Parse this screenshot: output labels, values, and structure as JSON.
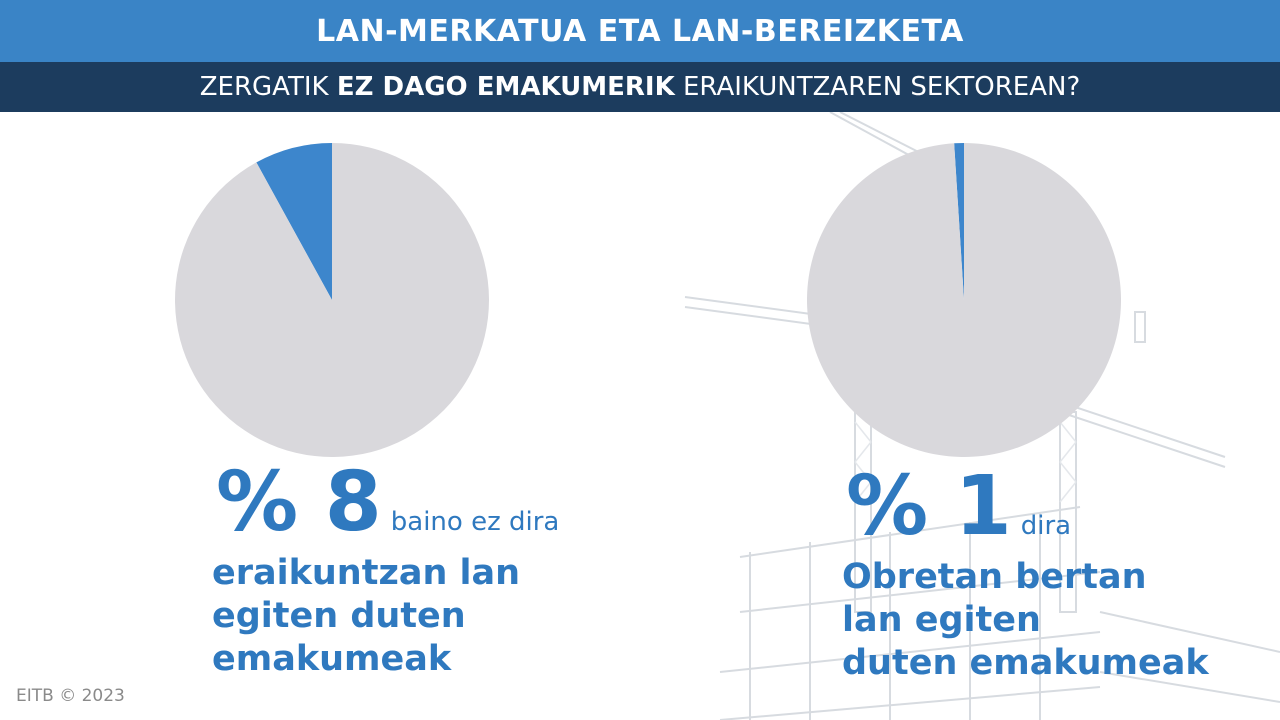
{
  "header": {
    "title": "LAN-MERKATUA ETA LAN-BEREIZKETA",
    "subtitle_pre": "ZERGATIK ",
    "subtitle_bold": "EZ DAGO EMAKUMERIK",
    "subtitle_post": " ERAIKUNTZAREN SEKTOREAN?"
  },
  "chart_data": [
    {
      "type": "pie",
      "slices": [
        {
          "value": 8,
          "color": "#3d86cc"
        },
        {
          "value": 92,
          "color": "#d9d8dc"
        }
      ]
    },
    {
      "type": "pie",
      "slices": [
        {
          "value": 1,
          "color": "#3d86cc"
        },
        {
          "value": 99,
          "color": "#d9d8dc"
        }
      ]
    }
  ],
  "stats": [
    {
      "big": "% 8",
      "small": "baino ez dira",
      "desc": [
        "eraikuntzan lan",
        "egiten duten",
        "emakumeak"
      ]
    },
    {
      "big": "% 1",
      "small": "dira",
      "desc": [
        "Obretan bertan",
        "lan egiten",
        "duten emakumeak"
      ]
    }
  ],
  "footer": {
    "credit": "EITB © 2023"
  },
  "colors": {
    "accent": "#3a84c6",
    "dark": "#1c3c5e",
    "text_blue": "#2f79bf",
    "pie_rest": "#d9d8dc"
  }
}
